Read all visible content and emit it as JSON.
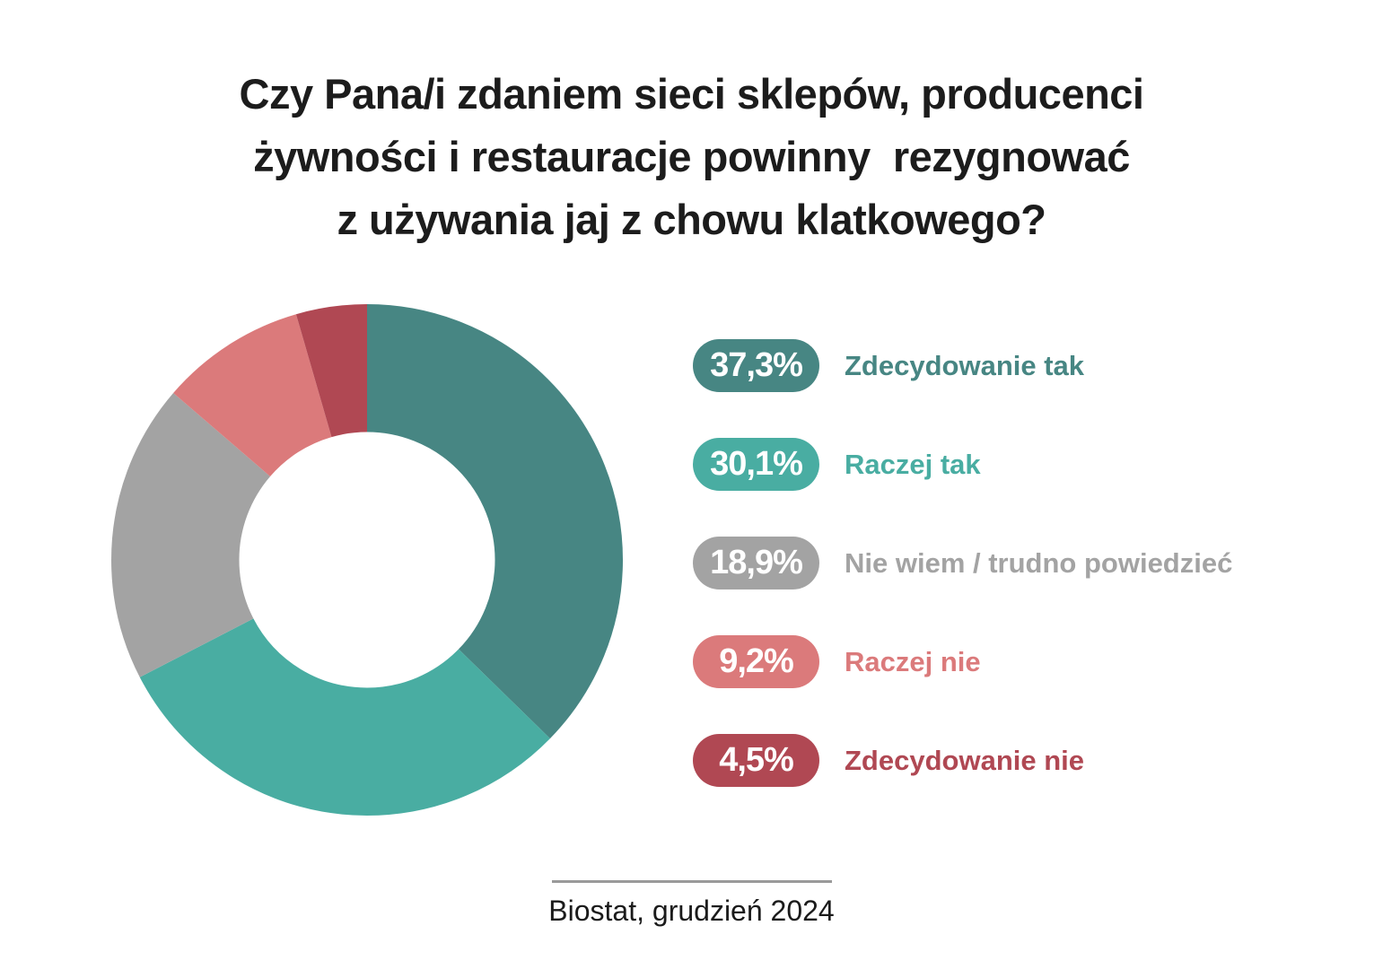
{
  "title": {
    "lines": [
      "Czy Pana/i zdaniem sieci sklepów, producenci",
      "żywności i restauracje powinny  rezygnować",
      "z używania jaj z chowu klatkowego?"
    ]
  },
  "footer": {
    "source": "Biostat, grudzień 2024"
  },
  "chart_data": {
    "type": "pie",
    "variant": "donut",
    "title": "Czy Pana/i zdaniem sieci sklepów, producenci żywności i restauracje powinny rezygnować z używania jaj z chowu klatkowego?",
    "categories": [
      "Zdecydowanie tak",
      "Raczej tak",
      "Nie wiem / trudno powiedzieć",
      "Raczej nie",
      "Zdecydowanie nie"
    ],
    "values": [
      37.3,
      30.1,
      18.9,
      9.2,
      4.5
    ],
    "value_labels": [
      "37,3%",
      "30,1%",
      "18,9%",
      "9,2%",
      "4,5%"
    ],
    "colors": [
      "#478683",
      "#49ADA2",
      "#A3A3A3",
      "#DB7A7B",
      "#B04853"
    ],
    "start_angle_deg": 0,
    "direction": "clockwise",
    "inner_radius_ratio": 0.5,
    "legend_position": "right",
    "source": "Biostat, grudzień 2024"
  }
}
